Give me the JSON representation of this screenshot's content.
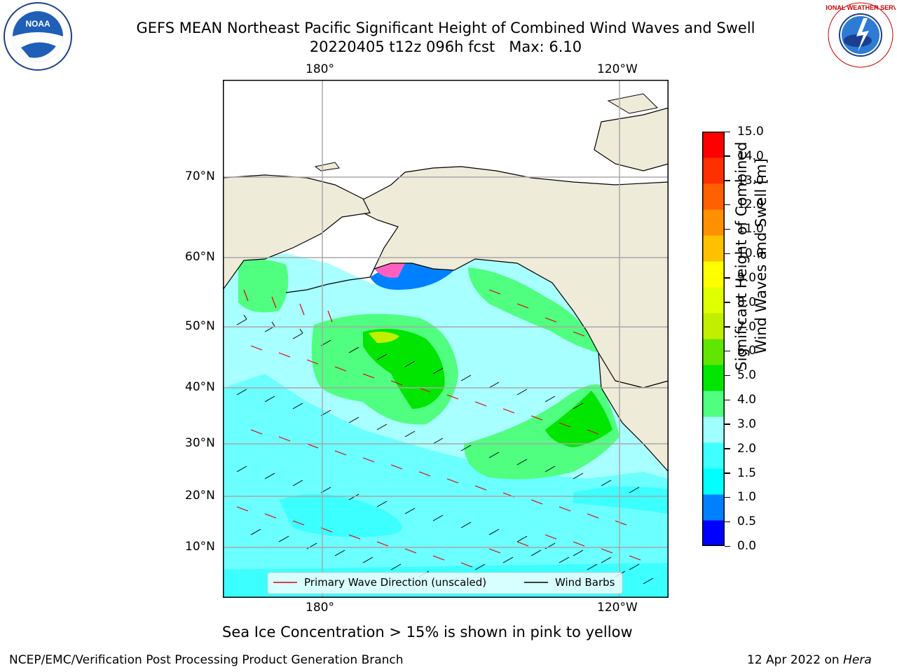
{
  "header": {
    "title_line1": "GEFS MEAN Northeast Pacific Significant Height of Combined Wind Waves and Swell",
    "title_line2": "20220405 t12z 096h fcst   Max: 6.10"
  },
  "logos": {
    "noaa_text": "NOAA",
    "nws_text": "NATIONAL WEATHER SERVICE"
  },
  "map": {
    "lon_labels_top": [
      "180°",
      "120°W"
    ],
    "lon_labels_bottom": [
      "180°",
      "120°W"
    ],
    "lat_labels": [
      "70°N",
      "60°N",
      "50°N",
      "40°N",
      "30°N",
      "20°N",
      "10°N"
    ],
    "legend": {
      "wave_direction": "Primary Wave Direction (unscaled)",
      "wind_barbs": "Wind Barbs"
    }
  },
  "colorbar": {
    "label_line1": "Significant Height of Combined",
    "label_line2": "Wind Waves and Swell [m]",
    "ticks": [
      "15.0",
      "14.0",
      "13.0",
      "12.0",
      "11.0",
      "10.0",
      "9.0",
      "8.0",
      "7.0",
      "6.0",
      "5.0",
      "4.0",
      "3.0",
      "2.0",
      "1.5",
      "1.0",
      "0.5",
      "0.0"
    ],
    "colors": [
      "#0000ff",
      "#0080ff",
      "#00ffff",
      "#40ffff",
      "#a0ffff",
      "#50ff80",
      "#00e600",
      "#60e600",
      "#c0f000",
      "#e0ff00",
      "#ffff00",
      "#ffc000",
      "#ff9000",
      "#ff6000",
      "#ff3000",
      "#ff0000"
    ]
  },
  "footer": {
    "ice_note": "Sea Ice Concentration > 15% is shown in pink to yellow",
    "branch": "NCEP/EMC/Verification Post Processing Product Generation Branch",
    "date": "12 Apr 2022 on",
    "machine": "Hera"
  }
}
